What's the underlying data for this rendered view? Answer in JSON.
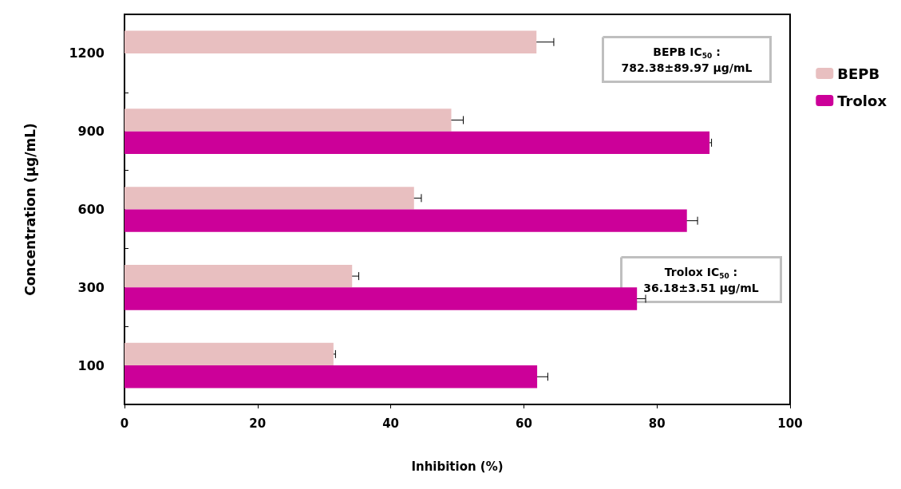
{
  "chart_data": {
    "type": "bar",
    "orientation": "horizontal",
    "xlabel": "Inhibition (%)",
    "ylabel": "Concentration (µg/mL)",
    "categories": [
      "1200",
      "900",
      "600",
      "300",
      "100"
    ],
    "series": [
      {
        "name": "BEPB",
        "color": "#e8bfc0",
        "values": [
          61.9,
          49.1,
          43.5,
          34.2,
          31.4
        ],
        "errors": [
          2.6,
          1.8,
          1.1,
          1.0,
          0.3
        ]
      },
      {
        "name": "Trolox",
        "color": "#cc0099",
        "values": [
          null,
          87.9,
          84.5,
          77.0,
          62.0
        ],
        "errors": [
          null,
          0.3,
          1.6,
          1.3,
          1.6
        ]
      }
    ],
    "xlim": [
      0,
      100
    ],
    "xticks": [
      0,
      20,
      40,
      60,
      80,
      100
    ],
    "grid": false,
    "legend": "right",
    "annotations": [
      "BEPB IC$_{50}$ :\n782.38±89.97 µg/mL",
      "Trolox IC$_{50}$ :\n36.18±3.51 µg/mL"
    ]
  }
}
